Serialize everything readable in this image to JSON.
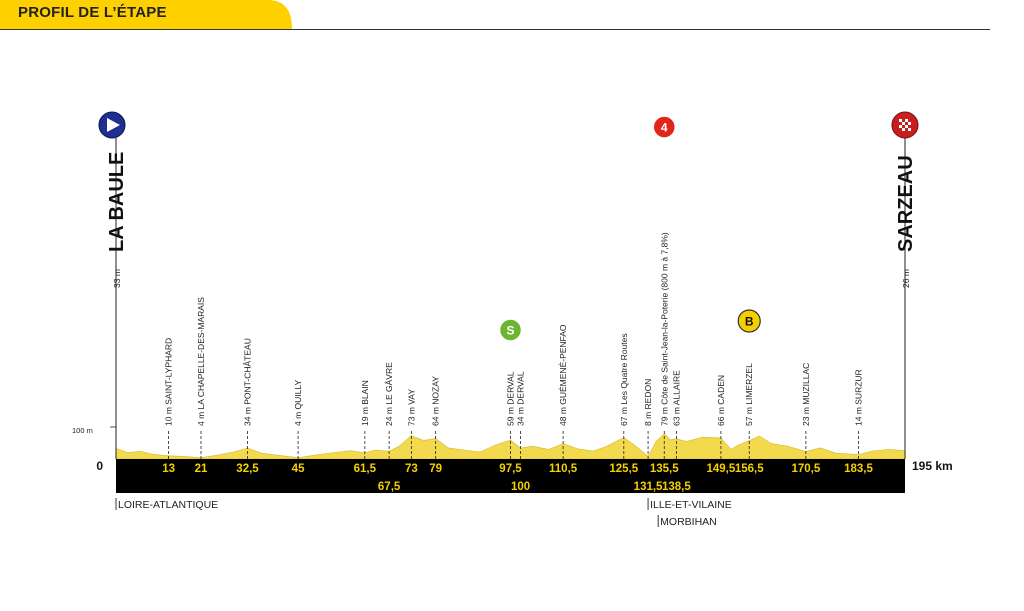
{
  "header": {
    "title": "PROFIL DE L’ÉTAPE"
  },
  "colors": {
    "accent": "#FFD000",
    "terrain": "#F2D94E",
    "band": "#000000",
    "marker_text": "#F5D000",
    "sprint_green": "#6CB531",
    "climb_red": "#E0261B",
    "start_blue": "#1F2F8F"
  },
  "chart_data": {
    "type": "area",
    "title": "PROFIL DE L’ÉTAPE",
    "xlabel": "",
    "ylabel": "",
    "xlim": [
      0,
      195
    ],
    "x_unit": "km",
    "y_ref_label": "100 m",
    "axis_zero_label": "0",
    "axis_end_label": "195 km",
    "start": {
      "name": "LA BAULE",
      "altitude": "33 m",
      "icon": "start-flag-icon"
    },
    "finish": {
      "name": "SARZEAU",
      "altitude": "26 m",
      "icon": "finish-flag-icon"
    },
    "waypoints": [
      {
        "km": 13,
        "km_label": "13",
        "label": "10 m SAINT-LYPHARD",
        "row": 1
      },
      {
        "km": 21,
        "km_label": "21",
        "label": "4 m LA CHAPELLE-DES-MARAIS",
        "row": 1
      },
      {
        "km": 32.5,
        "km_label": "32,5",
        "label": "34 m PONT-CHÂTEAU",
        "row": 1
      },
      {
        "km": 45,
        "km_label": "45",
        "label": "4 m QUILLY",
        "row": 1
      },
      {
        "km": 61.5,
        "km_label": "61,5",
        "label": "19 m BLAIN",
        "row": 1
      },
      {
        "km": 67.5,
        "km_label": "67,5",
        "label": "24 m LE GÂVRE",
        "row": 2
      },
      {
        "km": 73,
        "km_label": "73",
        "label": "73 m VAY",
        "row": 1
      },
      {
        "km": 79,
        "km_label": "79",
        "label": "64 m NOZAY",
        "row": 1
      },
      {
        "km": 97.5,
        "km_label": "97,5",
        "label": "59 m DERVAL",
        "row": 1
      },
      {
        "km": 100,
        "km_label": "100",
        "label": "34 m DERVAL",
        "row": 2
      },
      {
        "km": 110.5,
        "km_label": "110,5",
        "label": "48 m GUÉMENÉ-PENFAO",
        "row": 1
      },
      {
        "km": 125.5,
        "km_label": "125,5",
        "label": "67 m Les Quatre Routes",
        "row": 1
      },
      {
        "km": 131.5,
        "km_label": "131,5",
        "label": "8 m REDON",
        "row": 2
      },
      {
        "km": 135.5,
        "km_label": "135,5",
        "label": "79 m Côte de Saint-Jean-la-Poterie (800 m à 7,8%)",
        "row": 1
      },
      {
        "km": 138.5,
        "km_label": "138,5",
        "label": "63 m ALLAIRE",
        "row": 2
      },
      {
        "km": 149.5,
        "km_label": "149,5",
        "label": "66 m CADEN",
        "row": 1
      },
      {
        "km": 156.5,
        "km_label": "156,5",
        "label": "57 m LIMERZEL",
        "row": 1
      },
      {
        "km": 170.5,
        "km_label": "170,5",
        "label": "23 m MUZILLAC",
        "row": 1
      },
      {
        "km": 183.5,
        "km_label": "183,5",
        "label": "14 m SURZUR",
        "row": 1
      }
    ],
    "badges": [
      {
        "km": 97.5,
        "text": "S",
        "kind": "sprint",
        "color": "#6CB531"
      },
      {
        "km": 135.5,
        "text": "4",
        "kind": "climb",
        "color": "#E0261B"
      },
      {
        "km": 156.5,
        "text": "B",
        "kind": "bonus",
        "color": "#F5D000"
      }
    ],
    "regions": [
      {
        "km": 0,
        "label": "LOIRE-ATLANTIQUE"
      },
      {
        "km": 131.5,
        "label": "ILLE-ET-VILAINE"
      },
      {
        "km": 134,
        "label": "MORBIHAN"
      }
    ],
    "profile": {
      "km": [
        0,
        3,
        6,
        9,
        13,
        17,
        21,
        25,
        29,
        32.5,
        36,
        40,
        45,
        50,
        55,
        58,
        61.5,
        64,
        67.5,
        70,
        73,
        76,
        79,
        82,
        86,
        90,
        94,
        97.5,
        100,
        103,
        107,
        110.5,
        114,
        118,
        121,
        125.5,
        128,
        131.5,
        133.5,
        135.5,
        137,
        138.5,
        141,
        145,
        149.5,
        152,
        154,
        156.5,
        159,
        162,
        166,
        170.5,
        174,
        178,
        183.5,
        187,
        191,
        195
      ],
      "alt_m": [
        33,
        20,
        24,
        15,
        10,
        8,
        4,
        12,
        22,
        34,
        18,
        12,
        4,
        14,
        22,
        26,
        19,
        28,
        24,
        40,
        73,
        58,
        64,
        35,
        28,
        22,
        45,
        59,
        34,
        40,
        30,
        48,
        32,
        25,
        38,
        67,
        45,
        8,
        55,
        79,
        60,
        63,
        55,
        68,
        66,
        30,
        45,
        57,
        72,
        48,
        40,
        23,
        35,
        18,
        14,
        25,
        30,
        26
      ]
    }
  }
}
